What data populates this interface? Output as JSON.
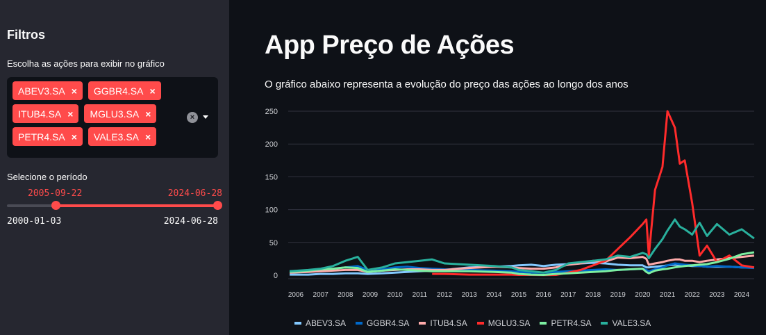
{
  "sidebar": {
    "title": "Filtros",
    "multiselect": {
      "label": "Escolha as ações para exibir no gráfico",
      "selected": [
        "ABEV3.SA",
        "GGBR4.SA",
        "ITUB4.SA",
        "MGLU3.SA",
        "PETR4.SA",
        "VALE3.SA"
      ],
      "remove_icon": "×",
      "clear_icon": "×"
    },
    "slider": {
      "label": "Selecione o período",
      "value_start": "2005-09-22",
      "value_end": "2024-06-28",
      "min": "2000-01-03",
      "max": "2024-06-28"
    }
  },
  "main": {
    "title": "App Preço de Ações",
    "subtitle": "O gráfico abaixo representa a evolução do preço das ações ao longo dos anos"
  },
  "colors": {
    "accent": "#ff4b4b",
    "sidebar_bg": "#262730",
    "main_bg": "#0e1117"
  },
  "chart_data": {
    "type": "line",
    "title": "",
    "xlabel": "",
    "ylabel": "",
    "ylim": [
      0,
      255
    ],
    "xlim": [
      2005.72,
      2024.5
    ],
    "y_ticks": [
      0,
      50,
      100,
      150,
      200,
      250
    ],
    "x_ticks": [
      "2006",
      "2007",
      "2008",
      "2009",
      "2010",
      "2011",
      "2012",
      "2013",
      "2014",
      "2015",
      "2016",
      "2017",
      "2018",
      "2019",
      "2020",
      "2021",
      "2022",
      "2023",
      "2024"
    ],
    "grid": true,
    "legend_position": "bottom",
    "x": [
      2005.75,
      2006.5,
      2007.0,
      2007.5,
      2008.0,
      2008.5,
      2008.9,
      2009.5,
      2010.0,
      2010.5,
      2011.0,
      2011.5,
      2012.0,
      2013.0,
      2014.0,
      2014.7,
      2015.0,
      2015.5,
      2016.0,
      2016.5,
      2017.0,
      2017.5,
      2018.0,
      2018.5,
      2019.0,
      2019.5,
      2020.0,
      2020.15,
      2020.25,
      2020.5,
      2020.8,
      2021.0,
      2021.3,
      2021.5,
      2021.7,
      2022.0,
      2022.3,
      2022.6,
      2023.0,
      2023.5,
      2024.0,
      2024.5
    ],
    "series": [
      {
        "name": "ABEV3.SA",
        "color": "#83c9ff",
        "values": [
          1,
          1,
          2,
          2,
          3,
          3,
          2,
          3,
          4,
          5,
          6,
          7,
          8,
          12,
          13,
          14,
          15,
          16,
          14,
          16,
          17,
          18,
          19,
          18,
          16,
          15,
          15,
          12,
          12,
          13,
          14,
          15,
          16,
          15,
          15,
          14,
          14,
          13,
          13,
          13,
          12,
          12
        ]
      },
      {
        "name": "GGBR4.SA",
        "color": "#0068c9",
        "values": [
          6,
          7,
          9,
          10,
          12,
          14,
          8,
          9,
          12,
          13,
          11,
          10,
          9,
          8,
          7,
          6,
          5,
          4,
          4,
          5,
          6,
          7,
          8,
          9,
          8,
          9,
          10,
          8,
          6,
          9,
          12,
          15,
          18,
          17,
          16,
          15,
          14,
          13,
          14,
          13,
          12,
          11
        ]
      },
      {
        "name": "ITUB4.SA",
        "color": "#ffabab",
        "values": [
          4,
          5,
          6,
          7,
          8,
          8,
          5,
          7,
          8,
          9,
          9,
          8,
          8,
          11,
          13,
          12,
          11,
          10,
          10,
          12,
          16,
          18,
          22,
          21,
          27,
          26,
          28,
          25,
          16,
          18,
          20,
          22,
          24,
          24,
          22,
          22,
          20,
          22,
          24,
          26,
          28,
          30
        ]
      },
      {
        "name": "MGLU3.SA",
        "color": "#ff2b2b",
        "values": [
          null,
          null,
          null,
          null,
          null,
          null,
          null,
          null,
          null,
          null,
          null,
          2,
          2,
          1,
          1,
          1,
          0.5,
          0.5,
          0.3,
          0.5,
          4,
          8,
          15,
          22,
          40,
          58,
          78,
          85,
          30,
          130,
          165,
          250,
          225,
          170,
          175,
          110,
          30,
          45,
          20,
          30,
          15,
          12
        ]
      },
      {
        "name": "PETR4.SA",
        "color": "#7defa1",
        "values": [
          5,
          7,
          9,
          10,
          12,
          11,
          5,
          7,
          9,
          8,
          7,
          6,
          6,
          6,
          5,
          4,
          2,
          1,
          0.5,
          2,
          3,
          4,
          5,
          6,
          8,
          9,
          10,
          5,
          3,
          7,
          9,
          10,
          12,
          13,
          14,
          15,
          16,
          17,
          20,
          25,
          32,
          35
        ]
      },
      {
        "name": "VALE3.SA",
        "color": "#29b09d",
        "values": [
          6,
          8,
          10,
          14,
          22,
          28,
          8,
          12,
          18,
          20,
          22,
          24,
          18,
          16,
          14,
          12,
          8,
          6,
          4,
          8,
          18,
          20,
          22,
          24,
          30,
          28,
          34,
          32,
          26,
          40,
          55,
          68,
          85,
          74,
          70,
          62,
          80,
          60,
          78,
          62,
          70,
          56
        ]
      }
    ]
  }
}
